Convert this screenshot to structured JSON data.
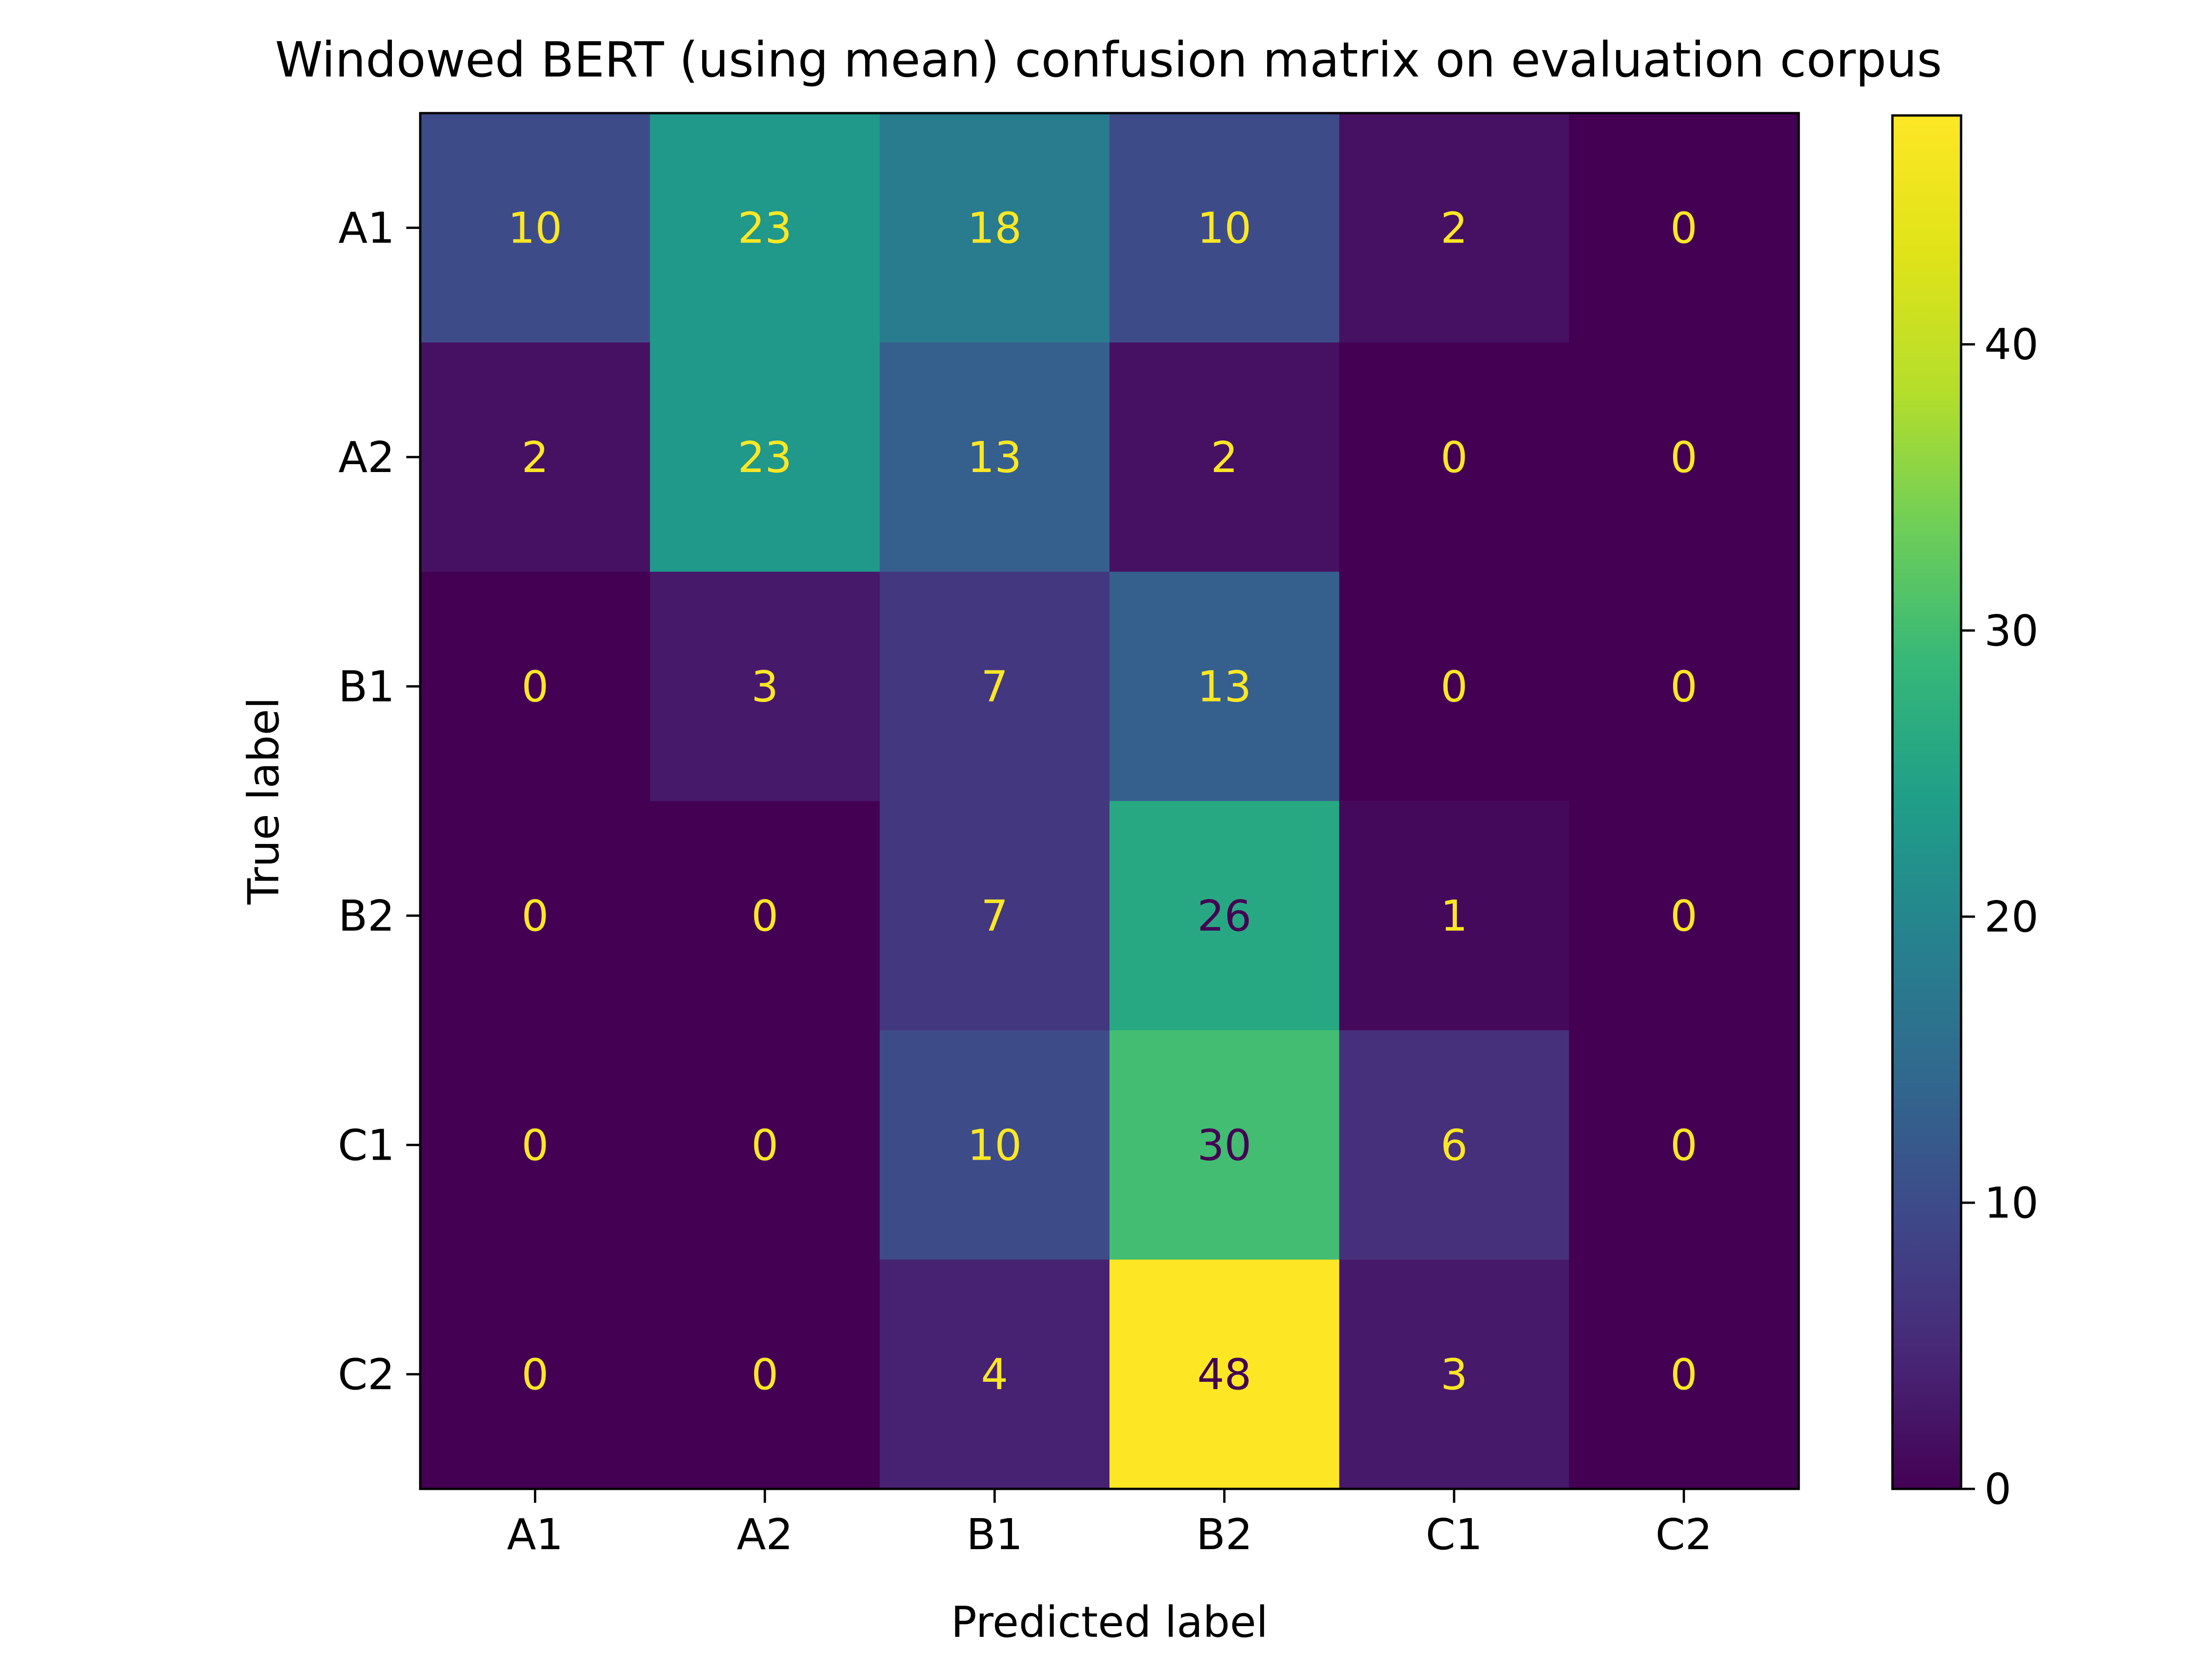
{
  "chart_data": {
    "type": "heatmap",
    "title": "Windowed BERT (using mean) confusion matrix on evaluation corpus",
    "xlabel": "Predicted label",
    "ylabel": "True label",
    "x_categories": [
      "A1",
      "A2",
      "B1",
      "B2",
      "C1",
      "C2"
    ],
    "y_categories": [
      "A1",
      "A2",
      "B1",
      "B2",
      "C1",
      "C2"
    ],
    "values": [
      [
        10,
        23,
        18,
        10,
        2,
        0
      ],
      [
        2,
        23,
        13,
        2,
        0,
        0
      ],
      [
        0,
        3,
        7,
        13,
        0,
        0
      ],
      [
        0,
        0,
        7,
        26,
        1,
        0
      ],
      [
        0,
        0,
        10,
        30,
        6,
        0
      ],
      [
        0,
        0,
        4,
        48,
        3,
        0
      ]
    ],
    "colorbar": {
      "colormap": "viridis",
      "range": [
        0,
        48
      ],
      "ticks": [
        0,
        10,
        20,
        30,
        40
      ],
      "tick_labels": [
        "0",
        "10",
        "20",
        "30",
        "40"
      ]
    },
    "text_colors": {
      "light": "#fde725",
      "dark": "#440154"
    }
  }
}
